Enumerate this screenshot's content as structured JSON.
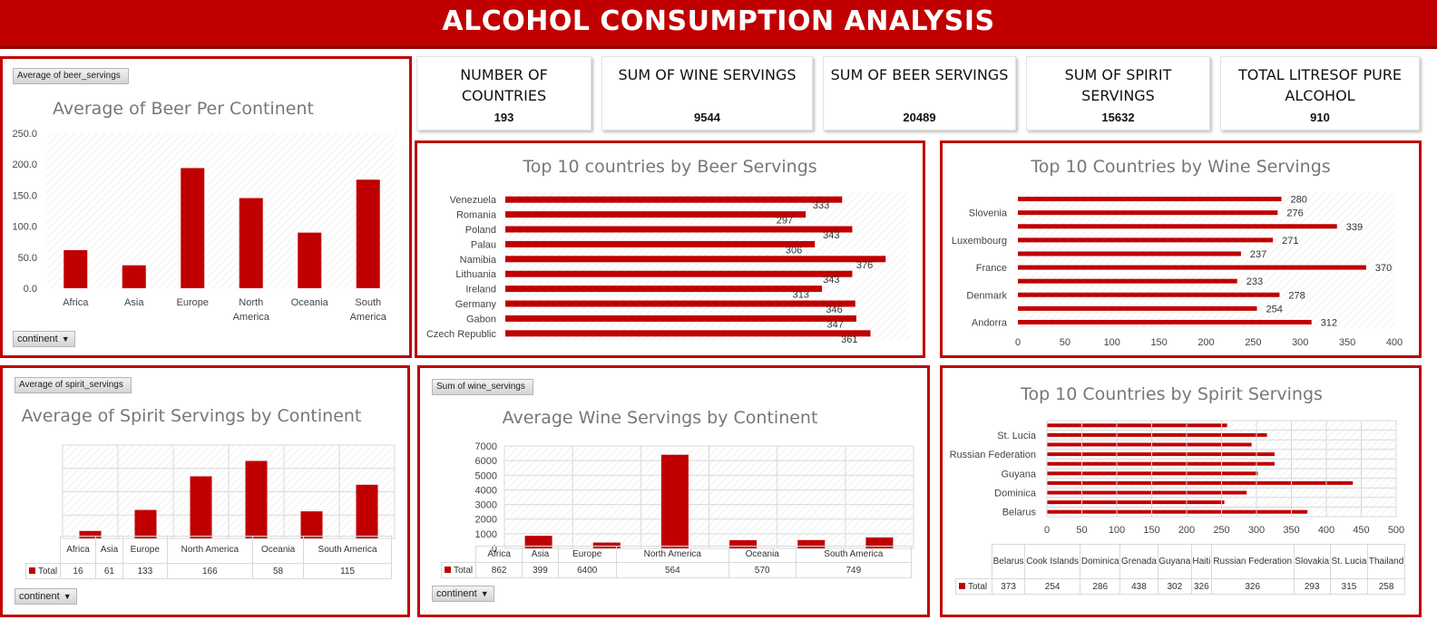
{
  "title": "ALCOHOL CONSUMPTION ANALYSIS",
  "colors": {
    "accent": "#c00000",
    "grid_hatch": "#e6e6e6"
  },
  "kpis": [
    {
      "label": "NUMBER OF COUNTRIES",
      "value": "193"
    },
    {
      "label": "SUM OF WINE SERVINGS",
      "value": "9544"
    },
    {
      "label": "SUM OF BEER SERVINGS",
      "value": "20489"
    },
    {
      "label": "SUM OF SPIRIT SERVINGS",
      "value": "15632"
    },
    {
      "label": "TOTAL LITRESOF PURE ALCOHOL",
      "value": "910"
    }
  ],
  "pivot": {
    "beer_field": "Average of beer_servings",
    "spirit_field": "Average of spirit_servings",
    "wine_field": "Sum of wine_servings",
    "filter_label": "continent",
    "total_label": "Total"
  },
  "chart_data": [
    {
      "id": "beer_by_continent",
      "type": "bar",
      "title": "Average of Beer Per Continent",
      "categories": [
        "Africa",
        "Asia",
        "Europe",
        "North America",
        "Oceania",
        "South America"
      ],
      "values": [
        61.5,
        37.0,
        193.8,
        145.4,
        89.7,
        175.1
      ],
      "ylim": [
        0,
        250
      ],
      "yticks": [
        "250.0",
        "200.0",
        "150.0",
        "100.0",
        "50.0",
        "0.0"
      ],
      "grid": true
    },
    {
      "id": "top10_beer",
      "type": "bar",
      "orientation": "horizontal",
      "title": "Top 10 countries by Beer Servings",
      "categories": [
        "Czech Republic",
        "Gabon",
        "Germany",
        "Ireland",
        "Lithuania",
        "Namibia",
        "Palau",
        "Poland",
        "Romania",
        "Venezuela"
      ],
      "values": [
        361,
        347,
        346,
        313,
        343,
        376,
        306,
        343,
        297,
        333
      ],
      "data_labels": [
        "361",
        "347",
        "346",
        "313",
        "343",
        "376",
        "306",
        "343",
        "297",
        "333"
      ]
    },
    {
      "id": "top10_wine",
      "type": "bar",
      "orientation": "horizontal",
      "title": "Top 10 Countries by Wine Servings",
      "categories": [
        "Andorra",
        "",
        "Denmark",
        "",
        "France",
        "",
        "Luxembourg",
        "",
        "Slovenia",
        ""
      ],
      "values": [
        312,
        254,
        278,
        233,
        370,
        237,
        271,
        339,
        276,
        280
      ],
      "data_labels": [
        "312",
        "254",
        "278",
        "233",
        "370",
        "237",
        "271",
        "339",
        "276",
        "280"
      ],
      "xlim": [
        0,
        400
      ],
      "xticks": [
        "0",
        "50",
        "100",
        "150",
        "200",
        "250",
        "300",
        "350",
        "400"
      ]
    },
    {
      "id": "spirit_by_continent",
      "type": "bar",
      "title": "Average of Spirit Servings by Continent",
      "categories": [
        "Africa",
        "Asia",
        "Europe",
        "North America",
        "Oceania",
        "South America"
      ],
      "values": [
        16,
        61,
        133,
        166,
        58,
        115
      ],
      "table_values": [
        "16",
        "61",
        "133",
        "166",
        "58",
        "115"
      ],
      "ylim": [
        0,
        200
      ]
    },
    {
      "id": "wine_by_continent",
      "type": "bar",
      "title": "Average Wine Servings by Continent",
      "categories": [
        "Africa",
        "Asia",
        "Europe",
        "North America",
        "Oceania",
        "South America"
      ],
      "values": [
        862,
        399,
        6400,
        564,
        570,
        749
      ],
      "table_values": [
        "862",
        "399",
        "6400",
        "564",
        "570",
        "749"
      ],
      "ylim": [
        0,
        7000
      ],
      "yticks": [
        "7000",
        "6000",
        "5000",
        "4000",
        "3000",
        "2000",
        "1000",
        "0"
      ]
    },
    {
      "id": "top10_spirit",
      "type": "bar",
      "orientation": "horizontal",
      "title": "Top 10 Countries by  Spirit Servings",
      "categories": [
        "Belarus",
        "",
        "Dominica",
        "",
        "Guyana",
        "",
        "Russian Federation",
        "",
        "St. Lucia",
        ""
      ],
      "values": [
        373,
        254,
        286,
        438,
        302,
        326,
        326,
        293,
        315,
        258
      ],
      "xlim": [
        0,
        500
      ],
      "xticks": [
        "0",
        "50",
        "100",
        "150",
        "200",
        "250",
        "300",
        "350",
        "400",
        "450",
        "500"
      ],
      "table_headers": [
        "Belarus",
        "Cook Islands",
        "Dominica",
        "Grenada",
        "Guyana",
        "Haiti",
        "Russian Federation",
        "Slovakia",
        "St. Lucia",
        "Thailand"
      ],
      "table_values": [
        "373",
        "254",
        "286",
        "438",
        "302",
        "326",
        "326",
        "293",
        "315",
        "258"
      ]
    }
  ]
}
